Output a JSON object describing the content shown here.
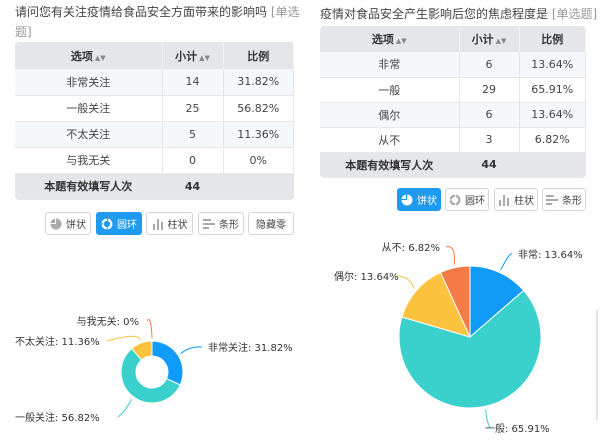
{
  "q1": {
    "title": "请问您有关注疫情给食品安全方面带来的影响吗",
    "tag": "[单选题]",
    "headers": [
      "选项",
      "小计",
      "比例"
    ],
    "rows": [
      {
        "option": "非常关注",
        "count": "14",
        "percent": "31.82%"
      },
      {
        "option": "一般关注",
        "count": "25",
        "percent": "56.82%"
      },
      {
        "option": "不太关注",
        "count": "5",
        "percent": "11.36%"
      },
      {
        "option": "与我无关",
        "count": "0",
        "percent": "0%"
      }
    ],
    "total_label": "本题有效填写人次",
    "total": "44",
    "buttons": [
      "饼状",
      "圆环",
      "柱状",
      "条形",
      "隐藏零"
    ],
    "active_button": "圆环"
  },
  "q2": {
    "title": "疫情对食品安全产生影响后您的焦虑程度是",
    "tag": "[单选题]",
    "headers": [
      "选项",
      "小计",
      "比例"
    ],
    "rows": [
      {
        "option": "非常",
        "count": "6",
        "percent": "13.64%"
      },
      {
        "option": "一般",
        "count": "29",
        "percent": "65.91%"
      },
      {
        "option": "偶尔",
        "count": "6",
        "percent": "13.64%"
      },
      {
        "option": "从不",
        "count": "3",
        "percent": "6.82%"
      }
    ],
    "total_label": "本题有效填写人次",
    "total": "44",
    "buttons": [
      "饼状",
      "圆环",
      "柱状",
      "条形"
    ],
    "active_button": "饼状"
  },
  "chart_data": [
    {
      "type": "donut",
      "categories": [
        "非常关注",
        "一般关注",
        "不太关注",
        "与我无关"
      ],
      "values": [
        31.82,
        56.82,
        11.36,
        0
      ],
      "labels": [
        "非常关注: 31.82%",
        "一般关注: 56.82%",
        "不太关注: 11.36%",
        "与我无关: 0%"
      ],
      "colors": [
        "#0f9bf7",
        "#3ad0cb",
        "#fdc33f",
        "#f57b46"
      ]
    },
    {
      "type": "pie",
      "categories": [
        "非常",
        "一般",
        "偶尔",
        "从不"
      ],
      "values": [
        13.64,
        65.91,
        13.64,
        6.82
      ],
      "labels": [
        "非常: 13.64%",
        "一般: 65.91%",
        "偶尔: 13.64%",
        "从不: 6.82%"
      ],
      "colors": [
        "#0f9bf7",
        "#3ad0cb",
        "#fdc33f",
        "#f57b46"
      ]
    }
  ]
}
